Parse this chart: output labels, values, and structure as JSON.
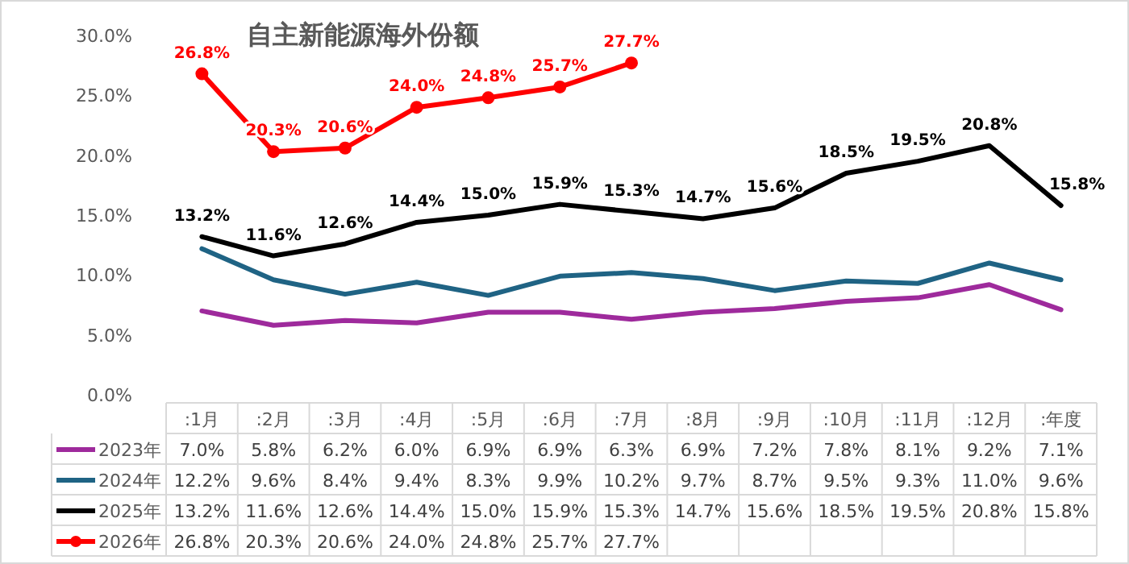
{
  "chart_data": {
    "type": "line",
    "title": "自主新能源海外份额",
    "categories": [
      ":1月",
      ":2月",
      ":3月",
      ":4月",
      ":5月",
      ":6月",
      ":7月",
      ":8月",
      ":9月",
      ":10月",
      ":11月",
      ":12月",
      ":年度"
    ],
    "ylim": [
      0,
      30
    ],
    "yticks": [
      {
        "value": 0,
        "label": "0.0%"
      },
      {
        "value": 5,
        "label": "5.0%"
      },
      {
        "value": 10,
        "label": "10.0%"
      },
      {
        "value": 15,
        "label": "15.0%"
      },
      {
        "value": 20,
        "label": "20.0%"
      },
      {
        "value": 25,
        "label": "25.0%"
      },
      {
        "value": 30,
        "label": "30.0%"
      }
    ],
    "legend": "bottom",
    "series": [
      {
        "name": "2023年",
        "color": "#9e2a9c",
        "marker": "none",
        "values": [
          7.0,
          5.8,
          6.2,
          6.0,
          6.9,
          6.9,
          6.3,
          6.9,
          7.2,
          7.8,
          8.1,
          9.2,
          7.1
        ],
        "value_labels": [
          "7.0%",
          "5.8%",
          "6.2%",
          "6.0%",
          "6.9%",
          "6.9%",
          "6.3%",
          "6.9%",
          "7.2%",
          "7.8%",
          "8.1%",
          "9.2%",
          "7.1%"
        ]
      },
      {
        "name": "2024年",
        "color": "#1f6384",
        "marker": "none",
        "values": [
          12.2,
          9.6,
          8.4,
          9.4,
          8.3,
          9.9,
          10.2,
          9.7,
          8.7,
          9.5,
          9.3,
          11.0,
          9.6
        ],
        "value_labels": [
          "12.2%",
          "9.6%",
          "8.4%",
          "9.4%",
          "8.3%",
          "9.9%",
          "10.2%",
          "9.7%",
          "8.7%",
          "9.5%",
          "9.3%",
          "11.0%",
          "9.6%"
        ]
      },
      {
        "name": "2025年",
        "color": "#000000",
        "marker": "none",
        "values": [
          13.2,
          11.6,
          12.6,
          14.4,
          15.0,
          15.9,
          15.3,
          14.7,
          15.6,
          18.5,
          19.5,
          20.8,
          15.8
        ],
        "value_labels": [
          "13.2%",
          "11.6%",
          "12.6%",
          "14.4%",
          "15.0%",
          "15.9%",
          "15.3%",
          "14.7%",
          "15.6%",
          "18.5%",
          "19.5%",
          "20.8%",
          "15.8%"
        ]
      },
      {
        "name": "2026年",
        "color": "#ff0000",
        "marker": "circle",
        "values": [
          26.8,
          20.3,
          20.6,
          24.0,
          24.8,
          25.7,
          27.7,
          null,
          null,
          null,
          null,
          null,
          null
        ],
        "value_labels": [
          "26.8%",
          "20.3%",
          "20.6%",
          "24.0%",
          "24.8%",
          "25.7%",
          "27.7%",
          null,
          null,
          null,
          null,
          null,
          null
        ]
      }
    ],
    "annotations": [
      {
        "text": "13.2%",
        "x": ":1月",
        "y": 13.2
      },
      {
        "text": "11.6%",
        "x": ":2月",
        "y": 11.6
      },
      {
        "text": "12.6%",
        "x": ":3月",
        "y": 12.6
      },
      {
        "text": "14.4%",
        "x": ":4月",
        "y": 14.4
      },
      {
        "text": "15.0%",
        "x": ":5月",
        "y": 15.0
      },
      {
        "text": "15.9%",
        "x": ":6月",
        "y": 15.9
      },
      {
        "text": "15.3%",
        "x": ":7月",
        "y": 15.3
      },
      {
        "text": "14.7%",
        "x": ":8月",
        "y": 14.7
      },
      {
        "text": "15.6%",
        "x": ":9月",
        "y": 15.6
      },
      {
        "text": "18.5%",
        "x": ":10月",
        "y": 18.5
      },
      {
        "text": "19.5%",
        "x": ":11月",
        "y": 19.5
      },
      {
        "text": "20.8%",
        "x": ":12月",
        "y": 20.8
      },
      {
        "text": "15.8%",
        "x": ":年度",
        "y": 15.8
      },
      {
        "text": "26.8%",
        "x": ":1月",
        "y": 26.8
      },
      {
        "text": "20.3%",
        "x": ":2月",
        "y": 20.3
      },
      {
        "text": "20.6%",
        "x": ":3月",
        "y": 20.6
      },
      {
        "text": "24.0%",
        "x": ":4月",
        "y": 24.0
      },
      {
        "text": "24.8%",
        "x": ":5月",
        "y": 24.8
      },
      {
        "text": "25.7%",
        "x": ":6月",
        "y": 25.7
      },
      {
        "text": "27.7%",
        "x": ":7月",
        "y": 27.7
      }
    ]
  }
}
